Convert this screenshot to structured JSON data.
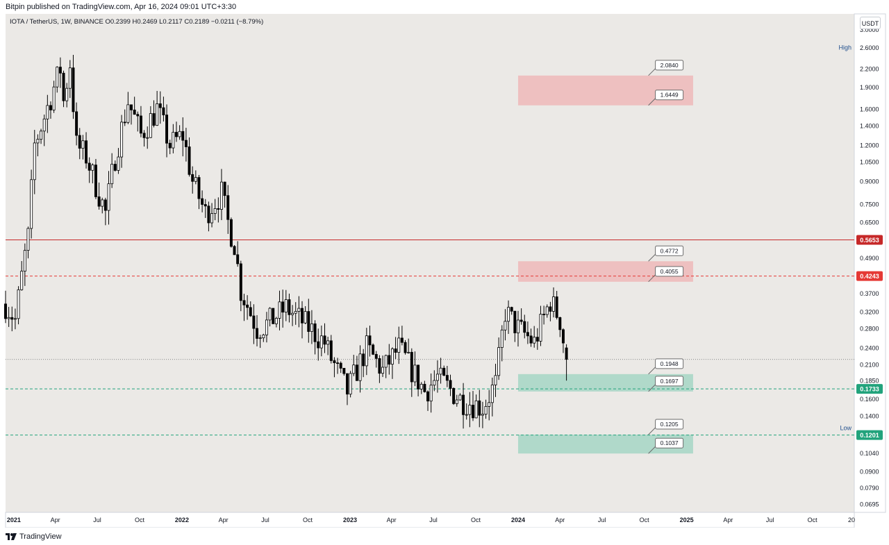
{
  "header": {
    "published": "Bitpin published on TradingView.com, Apr 16, 2024 09:01 UTC+3:30"
  },
  "legend": {
    "text": "IOTA / TetherUS, 1W, BINANCE  O0.2399  H0.2469  L0.2117  C0.2189  −0.0211 (−8.79%)"
  },
  "currency": "USDT",
  "footer": {
    "brand": "TradingView"
  },
  "colors": {
    "background": "#ebe9e6",
    "up": "#ffffff",
    "down": "#000000",
    "supply_zone": "#efb8b9",
    "demand_zone": "#a6d6c4",
    "red_line": "#c62828",
    "green_line": "#22a37c"
  },
  "chart_data": {
    "type": "candlestick",
    "symbol": "IOTA / TetherUS",
    "interval": "1W",
    "exchange": "BINANCE",
    "y_scale": "log",
    "ylim": [
      0.065,
      3.4
    ],
    "xlim": [
      "2020-12-14",
      "2025-12-31"
    ],
    "y_ticks": [
      "3.0000",
      "2.6000",
      "2.2000",
      "1.9000",
      "1.6000",
      "1.4000",
      "1.2000",
      "1.0500",
      "0.9000",
      "0.7500",
      "0.6500",
      "0.5653",
      "0.4900",
      "0.4243",
      "0.3700",
      "0.3200",
      "0.2800",
      "0.2400",
      "0.2100",
      "0.1850",
      "0.1733",
      "0.1600",
      "0.1400",
      "0.1201",
      "0.1040",
      "0.0900",
      "0.0790",
      "0.0695"
    ],
    "x_ticks": [
      {
        "label": "2021",
        "date": "2021-01-01",
        "bold": true
      },
      {
        "label": "Apr",
        "date": "2021-04-01"
      },
      {
        "label": "Jul",
        "date": "2021-07-01"
      },
      {
        "label": "Oct",
        "date": "2021-10-01"
      },
      {
        "label": "2022",
        "date": "2022-01-01",
        "bold": true
      },
      {
        "label": "Apr",
        "date": "2022-04-01"
      },
      {
        "label": "Jul",
        "date": "2022-07-01"
      },
      {
        "label": "Oct",
        "date": "2022-10-01"
      },
      {
        "label": "2023",
        "date": "2023-01-01",
        "bold": true
      },
      {
        "label": "Apr",
        "date": "2023-04-01"
      },
      {
        "label": "Jul",
        "date": "2023-07-01"
      },
      {
        "label": "Oct",
        "date": "2023-10-01"
      },
      {
        "label": "2024",
        "date": "2024-01-01",
        "bold": true
      },
      {
        "label": "Apr",
        "date": "2024-04-01"
      },
      {
        "label": "Jul",
        "date": "2024-07-01"
      },
      {
        "label": "Oct",
        "date": "2024-10-01"
      },
      {
        "label": "2025",
        "date": "2025-01-01",
        "bold": true
      },
      {
        "label": "Apr",
        "date": "2025-04-01"
      },
      {
        "label": "Jul",
        "date": "2025-07-01"
      },
      {
        "label": "Oct",
        "date": "2025-10-01"
      },
      {
        "label": "20",
        "date": "2026-01-01"
      }
    ],
    "anchors": [
      [
        "2020-12-14",
        0.34
      ],
      [
        "2021-01-04",
        0.3
      ],
      [
        "2021-01-25",
        0.5
      ],
      [
        "2021-02-01",
        0.58
      ],
      [
        "2021-02-15",
        1.2
      ],
      [
        "2021-03-08",
        1.5
      ],
      [
        "2021-03-29",
        1.9
      ],
      [
        "2021-04-12",
        2.2
      ],
      [
        "2021-04-19",
        1.7
      ],
      [
        "2021-05-03",
        2.3
      ],
      [
        "2021-05-17",
        1.2
      ],
      [
        "2021-06-07",
        1.1
      ],
      [
        "2021-07-19",
        0.7
      ],
      [
        "2021-08-09",
        1.1
      ],
      [
        "2021-09-06",
        1.7
      ],
      [
        "2021-10-04",
        1.3
      ],
      [
        "2021-11-08",
        1.6
      ],
      [
        "2021-12-06",
        1.2
      ],
      [
        "2022-01-03",
        1.3
      ],
      [
        "2022-01-24",
        0.9
      ],
      [
        "2022-02-21",
        0.7
      ],
      [
        "2022-03-28",
        0.82
      ],
      [
        "2022-04-11",
        0.65
      ],
      [
        "2022-04-25",
        0.55
      ],
      [
        "2022-05-09",
        0.38
      ],
      [
        "2022-06-13",
        0.28
      ],
      [
        "2022-07-04",
        0.29
      ],
      [
        "2022-08-15",
        0.33
      ],
      [
        "2022-09-26",
        0.29
      ],
      [
        "2022-11-07",
        0.25
      ],
      [
        "2022-11-21",
        0.22
      ],
      [
        "2022-12-26",
        0.17
      ],
      [
        "2023-02-06",
        0.24
      ],
      [
        "2023-03-13",
        0.2
      ],
      [
        "2023-04-17",
        0.24
      ],
      [
        "2023-06-12",
        0.17
      ],
      [
        "2023-07-10",
        0.19
      ],
      [
        "2023-08-28",
        0.16
      ],
      [
        "2023-10-16",
        0.15
      ],
      [
        "2023-11-13",
        0.18
      ],
      [
        "2023-12-04",
        0.32
      ],
      [
        "2024-01-01",
        0.28
      ],
      [
        "2024-02-05",
        0.25
      ],
      [
        "2024-03-11",
        0.35
      ],
      [
        "2024-04-01",
        0.3
      ],
      [
        "2024-04-15",
        0.219
      ]
    ],
    "zones": [
      {
        "kind": "supply",
        "top": 2.084,
        "bottom": 1.6449,
        "x0": "2024-01-01",
        "x1": "2025-01-15",
        "labels": [
          "2.0840",
          "1.6449"
        ]
      },
      {
        "kind": "supply",
        "top": 0.4772,
        "bottom": 0.4055,
        "x0": "2024-01-01",
        "x1": "2025-01-15",
        "labels": [
          "0.4772",
          "0.4055"
        ]
      },
      {
        "kind": "demand",
        "top": 0.1948,
        "bottom": 0.1697,
        "x0": "2024-01-01",
        "x1": "2025-01-15",
        "labels": [
          "0.1948",
          "0.1697"
        ]
      },
      {
        "kind": "demand",
        "top": 0.1205,
        "bottom": 0.1037,
        "x0": "2024-01-01",
        "x1": "2025-01-15",
        "labels": [
          "0.1205",
          "0.1037"
        ]
      }
    ],
    "levels": [
      {
        "value": 0.5653,
        "label": "0.5653",
        "style": "solid",
        "color": "#c62828"
      },
      {
        "value": 0.4243,
        "label": "0.4243",
        "style": "dashed",
        "color": "#e53935"
      },
      {
        "value": 0.2189,
        "label": "",
        "style": "dotted",
        "color": "#888888"
      },
      {
        "value": 0.1733,
        "label": "0.1733",
        "style": "dashed",
        "color": "#22a37c"
      },
      {
        "value": 0.1201,
        "label": "0.1201",
        "style": "dashed",
        "color": "#22a37c"
      }
    ],
    "annotations": [
      {
        "text": "High",
        "value": 2.6
      },
      {
        "text": "Low",
        "value": 0.127
      }
    ]
  }
}
